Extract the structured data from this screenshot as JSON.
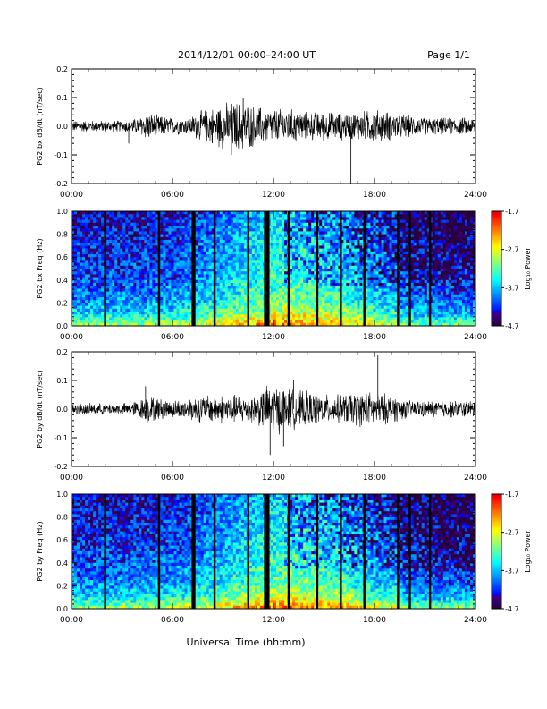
{
  "header": {
    "title": "2014/12/01   00:00–24:00 UT",
    "page": "Page 1/1"
  },
  "footer": {
    "xlabel": "Universal Time (hh:mm)"
  },
  "chart_data": [
    {
      "type": "line",
      "ylabel": "PG2 bx dB/dt (nT/sec)",
      "xlim": [
        0,
        24
      ],
      "ylim": [
        -0.2,
        0.2
      ],
      "x_ticks": [
        "00:00",
        "06:00",
        "12:00",
        "18:00",
        "24:00"
      ],
      "y_ticks": [
        "0.2",
        "0.1",
        "0.0",
        "-0.1",
        "-0.2"
      ],
      "envelope": {
        "x_hours": [
          0,
          1,
          2,
          3,
          4,
          4.5,
          5,
          6,
          7,
          7.5,
          8,
          9,
          10,
          11,
          12,
          13,
          14,
          15,
          16,
          17,
          18,
          19,
          20,
          21,
          22,
          23,
          24
        ],
        "amplitude": [
          0.02,
          0.02,
          0.02,
          0.02,
          0.03,
          0.05,
          0.04,
          0.03,
          0.03,
          0.05,
          0.06,
          0.08,
          0.09,
          0.07,
          0.06,
          0.06,
          0.05,
          0.05,
          0.05,
          0.05,
          0.06,
          0.05,
          0.04,
          0.03,
          0.03,
          0.03,
          0.03
        ]
      },
      "spikes": [
        {
          "x_hour": 16.6,
          "value": -0.2
        },
        {
          "x_hour": 9.5,
          "value": -0.1
        },
        {
          "x_hour": 10.2,
          "value": 0.1
        },
        {
          "x_hour": 3.4,
          "value": -0.06
        }
      ]
    },
    {
      "type": "heatmap",
      "ylabel": "PG2 bx Freq (Hz)",
      "colorbar_label": "Log₁₀ Power",
      "xlim": [
        0,
        24
      ],
      "ylim": [
        0,
        1.0
      ],
      "x_ticks": [
        "00:00",
        "06:00",
        "12:00",
        "18:00",
        "24:00"
      ],
      "y_ticks": [
        "1.0",
        "0.8",
        "0.6",
        "0.4",
        "0.2",
        "0.0"
      ],
      "colorbar_ticks": [
        "-1.7",
        "-2.7",
        "-3.7",
        "-4.7"
      ],
      "clim": [
        -4.7,
        -1.7
      ],
      "data_gaps_hours": [
        2.0,
        5.2,
        7.2,
        7.3,
        8.5,
        10.5,
        11.5,
        11.6,
        11.7,
        12.9,
        14.6,
        16.0,
        17.4,
        19.4,
        20.1,
        21.3
      ]
    },
    {
      "type": "line",
      "ylabel": "PG2 by dB/dt (nT/sec)",
      "xlim": [
        0,
        24
      ],
      "ylim": [
        -0.2,
        0.2
      ],
      "x_ticks": [
        "00:00",
        "06:00",
        "12:00",
        "18:00",
        "24:00"
      ],
      "y_ticks": [
        "0.2",
        "0.1",
        "0.0",
        "-0.1",
        "-0.2"
      ],
      "envelope": {
        "x_hours": [
          0,
          1,
          2,
          3,
          4,
          4.5,
          5,
          6,
          7,
          8,
          9,
          10,
          11,
          11.5,
          12,
          13,
          14,
          15,
          16,
          17,
          18,
          19,
          20,
          21,
          22,
          23,
          24
        ],
        "amplitude": [
          0.02,
          0.02,
          0.02,
          0.02,
          0.03,
          0.05,
          0.04,
          0.03,
          0.04,
          0.05,
          0.05,
          0.05,
          0.05,
          0.08,
          0.09,
          0.07,
          0.06,
          0.05,
          0.05,
          0.06,
          0.06,
          0.05,
          0.03,
          0.03,
          0.03,
          0.03,
          0.03
        ]
      },
      "spikes": [
        {
          "x_hour": 18.2,
          "value": 0.19
        },
        {
          "x_hour": 11.8,
          "value": -0.16
        },
        {
          "x_hour": 12.6,
          "value": -0.13
        },
        {
          "x_hour": 4.4,
          "value": 0.08
        },
        {
          "x_hour": 13.2,
          "value": 0.1
        }
      ]
    },
    {
      "type": "heatmap",
      "ylabel": "PG2 by Freq (Hz)",
      "colorbar_label": "Log₁₀ Power",
      "xlim": [
        0,
        24
      ],
      "ylim": [
        0,
        1.0
      ],
      "x_ticks": [
        "00:00",
        "06:00",
        "12:00",
        "18:00",
        "24:00"
      ],
      "y_ticks": [
        "1.0",
        "0.8",
        "0.6",
        "0.4",
        "0.2",
        "0.0"
      ],
      "colorbar_ticks": [
        "-1.7",
        "-2.7",
        "-3.7",
        "-4.7"
      ],
      "clim": [
        -4.7,
        -1.7
      ],
      "data_gaps_hours": [
        2.0,
        5.2,
        7.2,
        7.3,
        8.5,
        10.5,
        11.5,
        11.6,
        11.7,
        12.9,
        14.6,
        16.0,
        17.4,
        19.4,
        20.1,
        21.3
      ]
    }
  ]
}
